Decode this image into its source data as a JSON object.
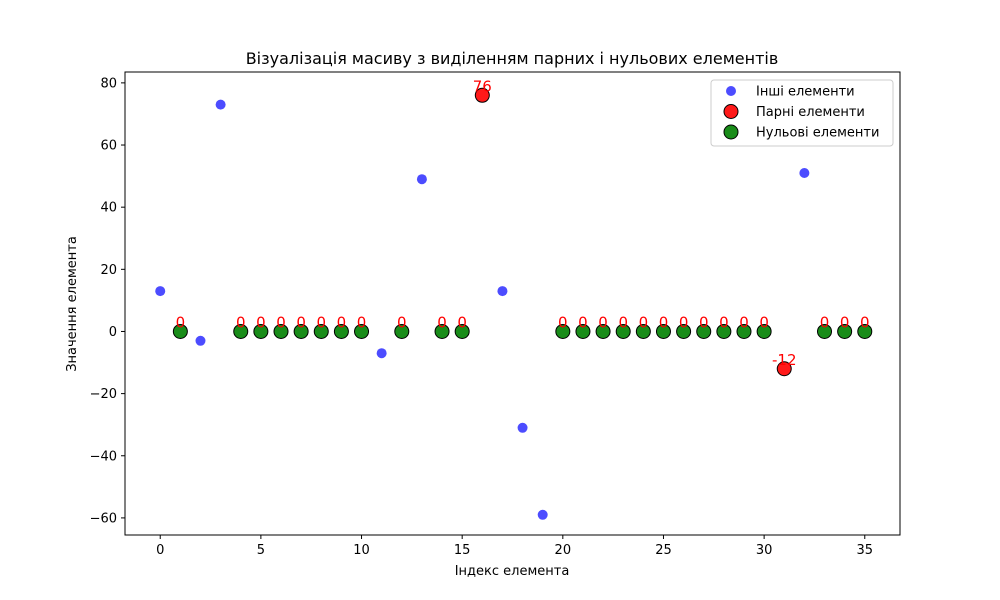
{
  "chart_data": {
    "type": "scatter",
    "title": "Візуалізація масиву з виділенням парних і нульових елементів",
    "xlabel": "Індекс елемента",
    "ylabel": "Значення елемента",
    "xlim": [
      -1.75,
      36.75
    ],
    "ylim": [
      -65.5,
      83.5
    ],
    "xticks": [
      0,
      5,
      10,
      15,
      20,
      25,
      30,
      35
    ],
    "yticks": [
      -60,
      -40,
      -20,
      0,
      20,
      40,
      60,
      80
    ],
    "xtick_labels": [
      "0",
      "5",
      "10",
      "15",
      "20",
      "25",
      "30",
      "35"
    ],
    "ytick_labels": [
      "−60",
      "−40",
      "−20",
      "0",
      "20",
      "40",
      "60",
      "80"
    ],
    "grid": false,
    "legend_position": "top-right",
    "series": [
      {
        "name": "Інші елементи",
        "color": "#0000ff",
        "points": [
          {
            "x": 0,
            "y": 13
          },
          {
            "x": 2,
            "y": -3
          },
          {
            "x": 3,
            "y": 73
          },
          {
            "x": 11,
            "y": -7
          },
          {
            "x": 13,
            "y": 49
          },
          {
            "x": 17,
            "y": 13
          },
          {
            "x": 18,
            "y": -31
          },
          {
            "x": 19,
            "y": -59
          },
          {
            "x": 32,
            "y": 51
          }
        ]
      },
      {
        "name": "Парні елементи",
        "color": "#ff0000",
        "points": [
          {
            "x": 16,
            "y": 76,
            "label": "76"
          },
          {
            "x": 31,
            "y": -12,
            "label": "-12"
          }
        ]
      },
      {
        "name": "Нульові елементи",
        "color": "#008000",
        "points": [
          {
            "x": 1,
            "y": 0,
            "label": "0"
          },
          {
            "x": 4,
            "y": 0,
            "label": "0"
          },
          {
            "x": 5,
            "y": 0,
            "label": "0"
          },
          {
            "x": 6,
            "y": 0,
            "label": "0"
          },
          {
            "x": 7,
            "y": 0,
            "label": "0"
          },
          {
            "x": 8,
            "y": 0,
            "label": "0"
          },
          {
            "x": 9,
            "y": 0,
            "label": "0"
          },
          {
            "x": 10,
            "y": 0,
            "label": "0"
          },
          {
            "x": 12,
            "y": 0,
            "label": "0"
          },
          {
            "x": 14,
            "y": 0,
            "label": "0"
          },
          {
            "x": 15,
            "y": 0,
            "label": "0"
          },
          {
            "x": 20,
            "y": 0,
            "label": "0"
          },
          {
            "x": 21,
            "y": 0,
            "label": "0"
          },
          {
            "x": 22,
            "y": 0,
            "label": "0"
          },
          {
            "x": 23,
            "y": 0,
            "label": "0"
          },
          {
            "x": 24,
            "y": 0,
            "label": "0"
          },
          {
            "x": 25,
            "y": 0,
            "label": "0"
          },
          {
            "x": 26,
            "y": 0,
            "label": "0"
          },
          {
            "x": 27,
            "y": 0,
            "label": "0"
          },
          {
            "x": 28,
            "y": 0,
            "label": "0"
          },
          {
            "x": 29,
            "y": 0,
            "label": "0"
          },
          {
            "x": 30,
            "y": 0,
            "label": "0"
          },
          {
            "x": 33,
            "y": 0,
            "label": "0"
          },
          {
            "x": 34,
            "y": 0,
            "label": "0"
          },
          {
            "x": 35,
            "y": 0,
            "label": "0"
          }
        ]
      }
    ],
    "annotation_color": "#ff0000"
  }
}
